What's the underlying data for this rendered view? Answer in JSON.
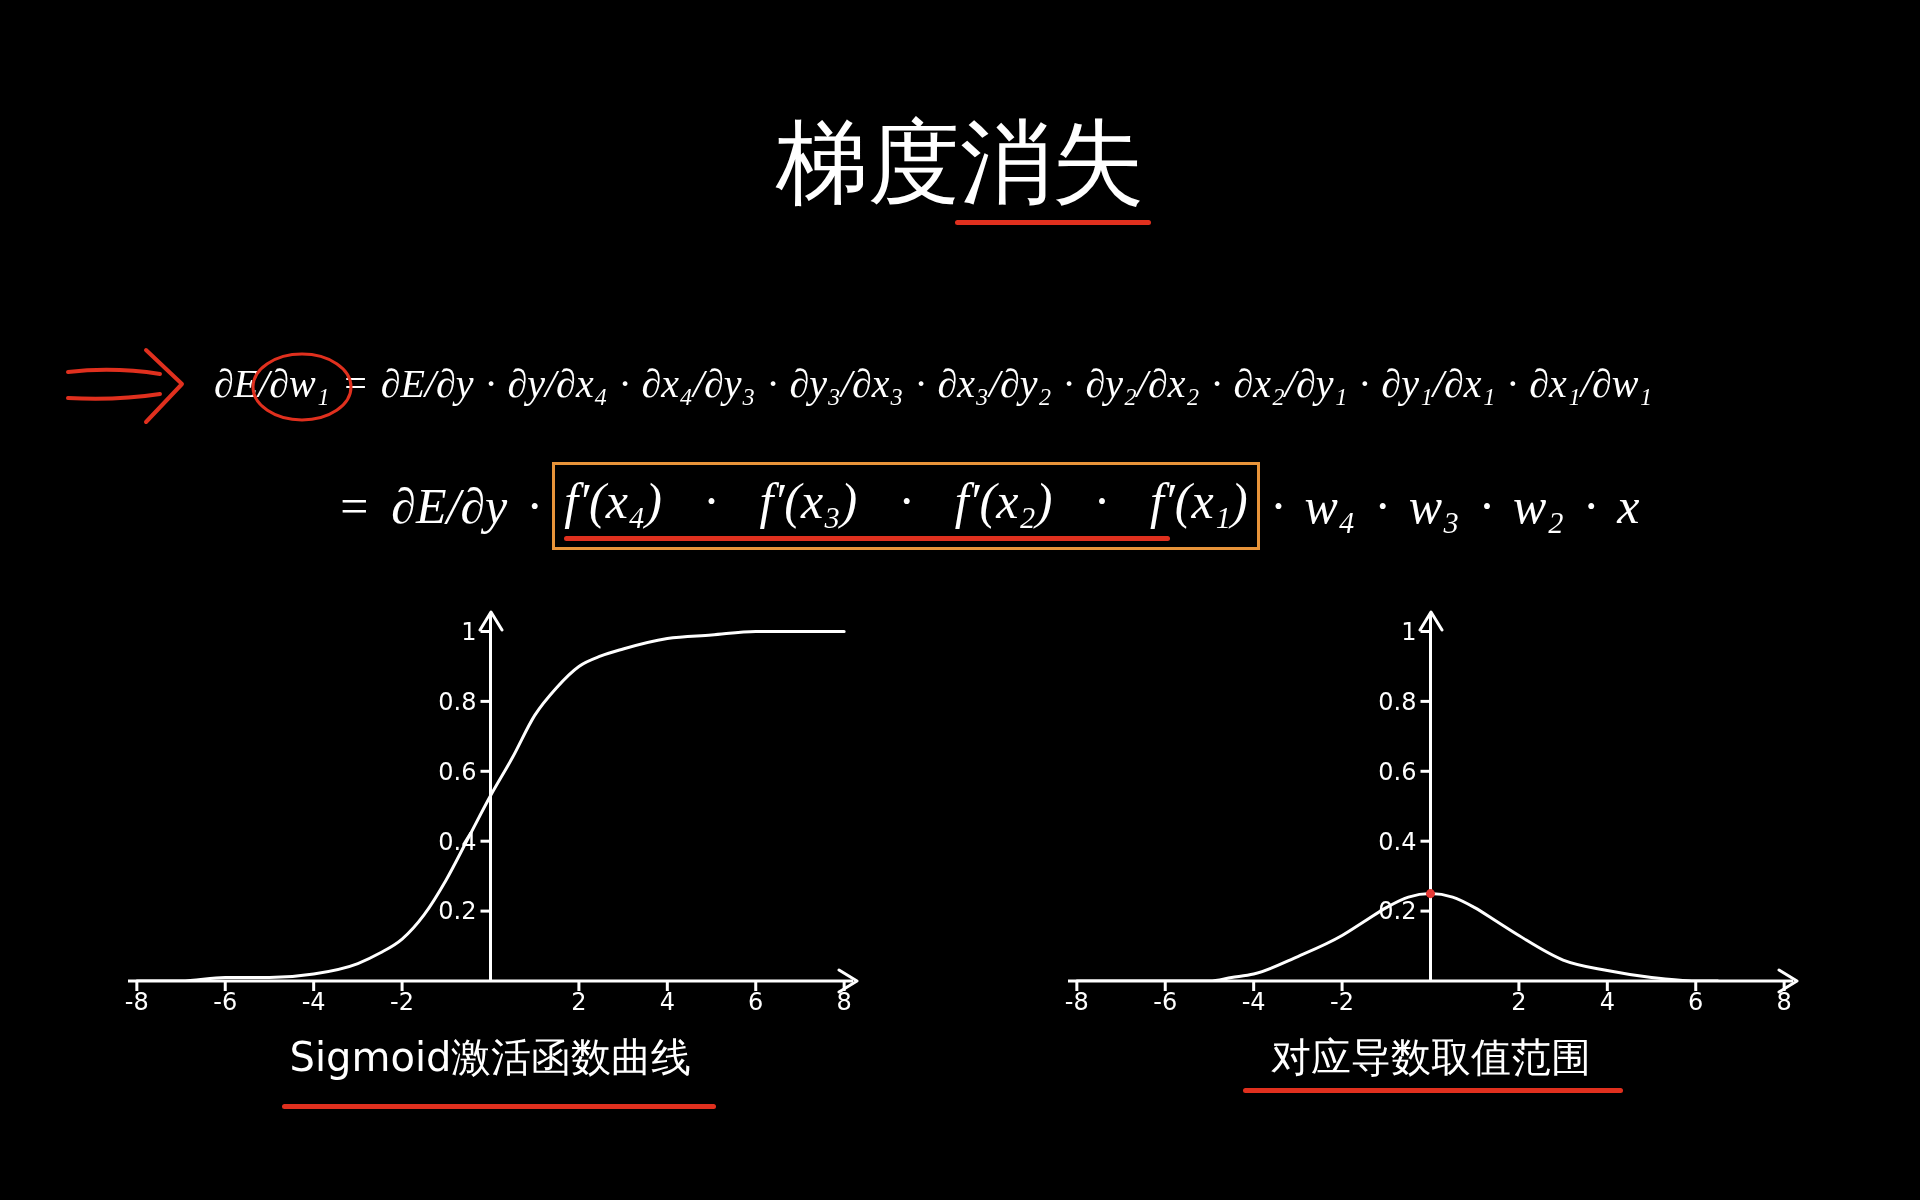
{
  "chart_data": [
    {
      "type": "other",
      "title": "梯度消失",
      "annotations": [
        "∂E/∂w₁ = ∂E/∂y · ∂y/∂x₄ · ∂x₄/∂y₃ · ∂y₃/∂x₃ · ∂x₃/∂y₂ · ∂y₂/∂x₂ · ∂x₂/∂y₁ · ∂y₁/∂x₁ · ∂x₁/∂w₁",
        "= ∂E/∂y ·",
        "f′(x₄) · f′(x₃) · f′(x₂) · f′(x₁)",
        "· w₄ · w₃ · w₂ · x"
      ]
    },
    {
      "type": "line",
      "xlabel": "Sigmoid激活函数曲线",
      "x": [
        -8,
        -7,
        -6,
        -5,
        -4,
        -3,
        -2.5,
        -2,
        -1.5,
        -1,
        -0.5,
        0,
        0.5,
        1,
        1.5,
        2,
        2.5,
        3,
        4,
        5,
        6,
        7,
        8
      ],
      "series": [
        {
          "color": "#ffffff",
          "values": [
            0,
            0,
            0.01,
            0.01,
            0.02,
            0.05,
            0.08,
            0.12,
            0.19,
            0.29,
            0.41,
            0.53,
            0.64,
            0.76,
            0.84,
            0.9,
            0.93,
            0.95,
            0.98,
            0.99,
            1,
            1,
            1
          ]
        }
      ],
      "xlim": [
        -8.2,
        8.2
      ],
      "ylim": [
        0,
        1.05
      ],
      "xticks": [
        -8,
        -6,
        -4,
        -2,
        2,
        4,
        6,
        8
      ],
      "yticks": [
        0.2,
        0.4,
        0.6,
        0.8,
        1
      ]
    },
    {
      "type": "line",
      "xlabel": "对应导数取值范围",
      "x": [
        -8,
        -6,
        -5,
        -4.5,
        -4,
        -3,
        -2,
        -1.5,
        -1,
        -0.5,
        0,
        0.5,
        1,
        1.5,
        2,
        3,
        4,
        5,
        6,
        6.5
      ],
      "series": [
        {
          "color": "#ffffff",
          "values": [
            0,
            0,
            0,
            0.01,
            0.02,
            0.07,
            0.13,
            0.17,
            0.21,
            0.24,
            0.25,
            0.24,
            0.21,
            0.17,
            0.13,
            0.06,
            0.03,
            0.01,
            0,
            0
          ]
        },
        {
          "type": "scatter",
          "color": "#e53935",
          "x": [
            0
          ],
          "values": [
            0.25
          ],
          "marker": "circle"
        }
      ],
      "xlim": [
        -8.2,
        8.2
      ],
      "ylim": [
        0,
        1.05
      ],
      "xticks": [
        -8,
        -6,
        -4,
        -2,
        2,
        4,
        6,
        8
      ],
      "yticks": [
        0.2,
        0.4,
        0.6,
        0.8,
        1
      ]
    }
  ]
}
